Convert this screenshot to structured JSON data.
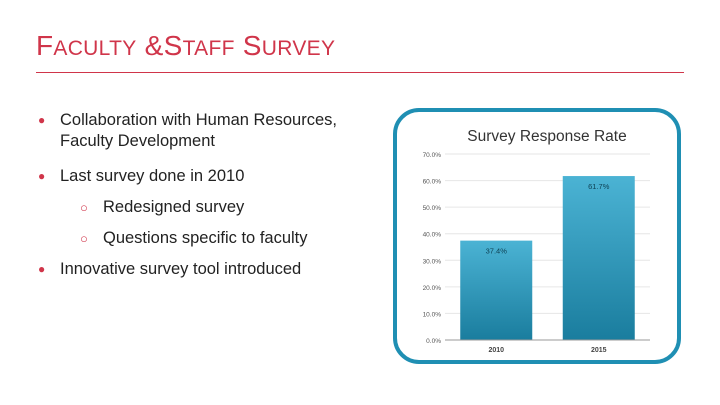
{
  "slide": {
    "title_parts": [
      {
        "initial": "F",
        "rest": "aculty"
      },
      {
        "initial": "&",
        "rest": ""
      },
      {
        "initial": "S",
        "rest": "taff"
      },
      {
        "initial": "S",
        "rest": "urvey"
      }
    ]
  },
  "bullets": [
    {
      "level": 1,
      "text_lines": [
        "Collaboration with Human Resources,",
        "Faculty Development"
      ]
    },
    {
      "level": 1,
      "text_lines": [
        "Last survey done in 2010"
      ]
    },
    {
      "level": 2,
      "text_lines": [
        "Redesigned survey"
      ]
    },
    {
      "level": 2,
      "text_lines": [
        "Questions specific to faculty"
      ]
    },
    {
      "level": 1,
      "text_lines": [
        "Innovative survey tool introduced"
      ]
    }
  ],
  "colors": {
    "accent": "#d0354a",
    "frame": "#1f8fb3",
    "bar_top": "#4bb3d4",
    "bar_bottom": "#1a7d9e"
  },
  "chart_data": {
    "type": "bar",
    "title": "Survey Response Rate",
    "categories": [
      "2010",
      "2015"
    ],
    "values": [
      37.4,
      61.7
    ],
    "data_labels": [
      "37.4%",
      "61.7%"
    ],
    "ylim": [
      0,
      70
    ],
    "yticks": [
      0,
      10,
      20,
      30,
      40,
      50,
      60,
      70
    ],
    "ytick_labels": [
      "0.0%",
      "10.0%",
      "20.0%",
      "30.0%",
      "40.0%",
      "50.0%",
      "60.0%",
      "70.0%"
    ],
    "xlabel": "",
    "ylabel": "",
    "grid": true,
    "legend": "none"
  }
}
